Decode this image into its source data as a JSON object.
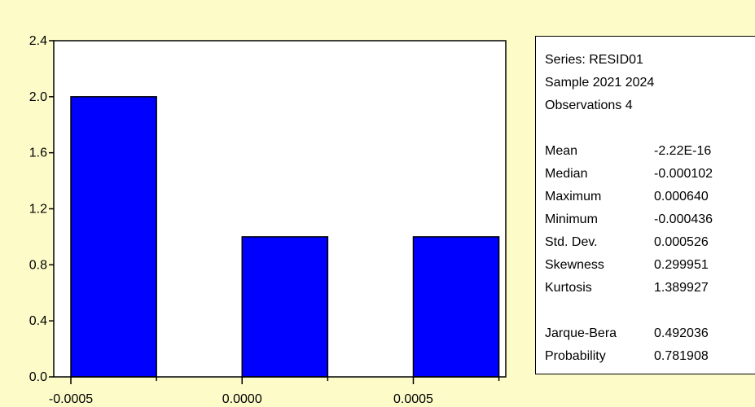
{
  "colors": {
    "background": "#fdfcc9",
    "plot_background": "#ffffff",
    "bar_fill": "#0000ff",
    "bar_stroke": "#000000"
  },
  "chart_data": {
    "type": "bar",
    "bins": [
      {
        "x_start": -0.0005,
        "x_end": -0.00025,
        "count": 2
      },
      {
        "x_start": 0.0,
        "x_end": 0.00025,
        "count": 1
      },
      {
        "x_start": 0.0005,
        "x_end": 0.00075,
        "count": 1
      }
    ],
    "xlim": [
      -0.00055,
      0.00077
    ],
    "ylim": [
      0.0,
      2.4
    ],
    "x_tick_labels": [
      "-0.0005",
      "0.0000",
      "0.0005"
    ],
    "x_tick_values": [
      -0.0005,
      0.0,
      0.0005
    ],
    "y_tick_labels": [
      "0.0",
      "0.4",
      "0.8",
      "1.2",
      "1.6",
      "2.0",
      "2.4"
    ],
    "y_tick_values": [
      0.0,
      0.4,
      0.8,
      1.2,
      1.6,
      2.0,
      2.4
    ],
    "grid": false
  },
  "stats_panel": {
    "series_line": "Series: RESID01",
    "sample_line": "Sample 2021 2024",
    "observations_line": "Observations 4",
    "rows": [
      {
        "label": "Mean",
        "value": "-2.22E-16"
      },
      {
        "label": "Median",
        "value": "-0.000102"
      },
      {
        "label": "Maximum",
        "value": "0.000640"
      },
      {
        "label": "Minimum",
        "value": "-0.000436"
      },
      {
        "label": "Std. Dev.",
        "value": "0.000526"
      },
      {
        "label": "Skewness",
        "value": "0.299951"
      },
      {
        "label": "Kurtosis",
        "value": "1.389927"
      },
      {
        "label": "Jarque-Bera",
        "value": "0.492036"
      },
      {
        "label": "Probability",
        "value": "0.781908"
      }
    ]
  }
}
